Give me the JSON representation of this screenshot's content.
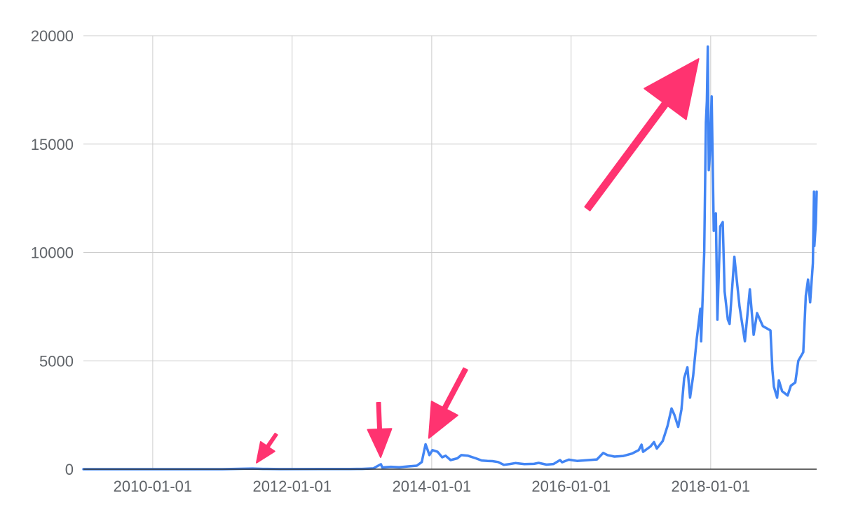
{
  "chart_data": {
    "type": "line",
    "title": "",
    "xlabel": "",
    "ylabel": "",
    "x_axis_type": "date",
    "xlim": [
      "2009-01-03",
      "2019-07-10"
    ],
    "ylim": [
      0,
      20000
    ],
    "grid": true,
    "legend": "none",
    "x_ticks": [
      "2010-01-01",
      "2012-01-01",
      "2014-01-01",
      "2016-01-01",
      "2018-01-01"
    ],
    "y_ticks": [
      0,
      5000,
      10000,
      15000,
      20000
    ],
    "series": [
      {
        "color": "#4285f4",
        "points": [
          [
            "2009-01-03",
            0
          ],
          [
            "2010-07-01",
            0
          ],
          [
            "2011-01-01",
            0.3
          ],
          [
            "2011-06-08",
            30
          ],
          [
            "2011-08-01",
            12
          ],
          [
            "2011-11-01",
            3
          ],
          [
            "2012-06-01",
            6
          ],
          [
            "2012-11-01",
            11
          ],
          [
            "2013-01-01",
            13
          ],
          [
            "2013-03-01",
            35
          ],
          [
            "2013-04-10",
            230
          ],
          [
            "2013-04-17",
            80
          ],
          [
            "2013-06-01",
            110
          ],
          [
            "2013-07-15",
            90
          ],
          [
            "2013-09-01",
            130
          ],
          [
            "2013-10-15",
            160
          ],
          [
            "2013-11-10",
            330
          ],
          [
            "2013-11-20",
            750
          ],
          [
            "2013-11-30",
            1150
          ],
          [
            "2013-12-10",
            900
          ],
          [
            "2013-12-20",
            650
          ],
          [
            "2014-01-05",
            880
          ],
          [
            "2014-02-01",
            800
          ],
          [
            "2014-02-25",
            550
          ],
          [
            "2014-03-15",
            620
          ],
          [
            "2014-04-10",
            420
          ],
          [
            "2014-05-15",
            500
          ],
          [
            "2014-06-05",
            650
          ],
          [
            "2014-07-10",
            620
          ],
          [
            "2014-08-20",
            500
          ],
          [
            "2014-09-20",
            400
          ],
          [
            "2014-10-20",
            380
          ],
          [
            "2014-11-15",
            370
          ],
          [
            "2014-12-15",
            330
          ],
          [
            "2015-01-14",
            200
          ],
          [
            "2015-02-15",
            240
          ],
          [
            "2015-03-15",
            280
          ],
          [
            "2015-05-01",
            235
          ],
          [
            "2015-06-20",
            245
          ],
          [
            "2015-07-15",
            290
          ],
          [
            "2015-08-25",
            210
          ],
          [
            "2015-10-01",
            240
          ],
          [
            "2015-11-04",
            420
          ],
          [
            "2015-11-15",
            320
          ],
          [
            "2015-12-20",
            440
          ],
          [
            "2016-02-01",
            380
          ],
          [
            "2016-04-01",
            420
          ],
          [
            "2016-05-15",
            450
          ],
          [
            "2016-06-17",
            750
          ],
          [
            "2016-07-10",
            650
          ],
          [
            "2016-08-15",
            580
          ],
          [
            "2016-10-01",
            610
          ],
          [
            "2016-11-15",
            720
          ],
          [
            "2016-12-20",
            880
          ],
          [
            "2017-01-04",
            1130
          ],
          [
            "2017-01-12",
            800
          ],
          [
            "2017-02-20",
            1050
          ],
          [
            "2017-03-10",
            1250
          ],
          [
            "2017-03-25",
            950
          ],
          [
            "2017-04-25",
            1300
          ],
          [
            "2017-05-20",
            2000
          ],
          [
            "2017-06-10",
            2800
          ],
          [
            "2017-06-25",
            2500
          ],
          [
            "2017-07-15",
            1950
          ],
          [
            "2017-08-01",
            2750
          ],
          [
            "2017-08-15",
            4200
          ],
          [
            "2017-09-01",
            4700
          ],
          [
            "2017-09-15",
            3300
          ],
          [
            "2017-10-01",
            4300
          ],
          [
            "2017-10-20",
            6000
          ],
          [
            "2017-11-08",
            7400
          ],
          [
            "2017-11-12",
            5900
          ],
          [
            "2017-11-28",
            10000
          ],
          [
            "2017-12-07",
            16000
          ],
          [
            "2017-12-12",
            17000
          ],
          [
            "2017-12-17",
            19500
          ],
          [
            "2017-12-22",
            13800
          ],
          [
            "2017-12-28",
            14500
          ],
          [
            "2018-01-06",
            17200
          ],
          [
            "2018-01-17",
            11000
          ],
          [
            "2018-01-28",
            11800
          ],
          [
            "2018-02-05",
            6900
          ],
          [
            "2018-02-20",
            11200
          ],
          [
            "2018-03-05",
            11400
          ],
          [
            "2018-03-15",
            8200
          ],
          [
            "2018-04-01",
            6900
          ],
          [
            "2018-04-10",
            6700
          ],
          [
            "2018-05-05",
            9800
          ],
          [
            "2018-06-01",
            7500
          ],
          [
            "2018-06-29",
            5900
          ],
          [
            "2018-07-25",
            8300
          ],
          [
            "2018-08-14",
            6200
          ],
          [
            "2018-09-01",
            7200
          ],
          [
            "2018-10-01",
            6600
          ],
          [
            "2018-11-10",
            6400
          ],
          [
            "2018-11-20",
            4600
          ],
          [
            "2018-11-28",
            3800
          ],
          [
            "2018-12-15",
            3300
          ],
          [
            "2018-12-24",
            4100
          ],
          [
            "2019-01-10",
            3600
          ],
          [
            "2019-02-08",
            3400
          ],
          [
            "2019-02-25",
            3850
          ],
          [
            "2019-03-20",
            4000
          ],
          [
            "2019-04-05",
            5000
          ],
          [
            "2019-05-01",
            5400
          ],
          [
            "2019-05-14",
            8000
          ],
          [
            "2019-05-26",
            8750
          ],
          [
            "2019-06-06",
            7700
          ],
          [
            "2019-06-20",
            9500
          ],
          [
            "2019-06-26",
            12800
          ],
          [
            "2019-06-28",
            10300
          ],
          [
            "2019-07-06",
            11400
          ],
          [
            "2019-07-10",
            12800
          ]
        ]
      }
    ],
    "annotations": [
      {
        "type": "arrow",
        "color": "#ff3370",
        "points_to": [
          "2011-06-08",
          30
        ]
      },
      {
        "type": "arrow",
        "color": "#ff3370",
        "points_to": [
          "2013-04-10",
          230
        ]
      },
      {
        "type": "arrow",
        "color": "#ff3370",
        "points_to": [
          "2013-11-30",
          1150
        ]
      },
      {
        "type": "arrow",
        "color": "#ff3370",
        "points_to": [
          "2017-12-17",
          19500
        ]
      }
    ]
  },
  "colors": {
    "line": "#4285f4",
    "arrow": "#ff3370",
    "grid": "#cccccc",
    "axis": "#333333",
    "tick_text": "#5f6368"
  }
}
